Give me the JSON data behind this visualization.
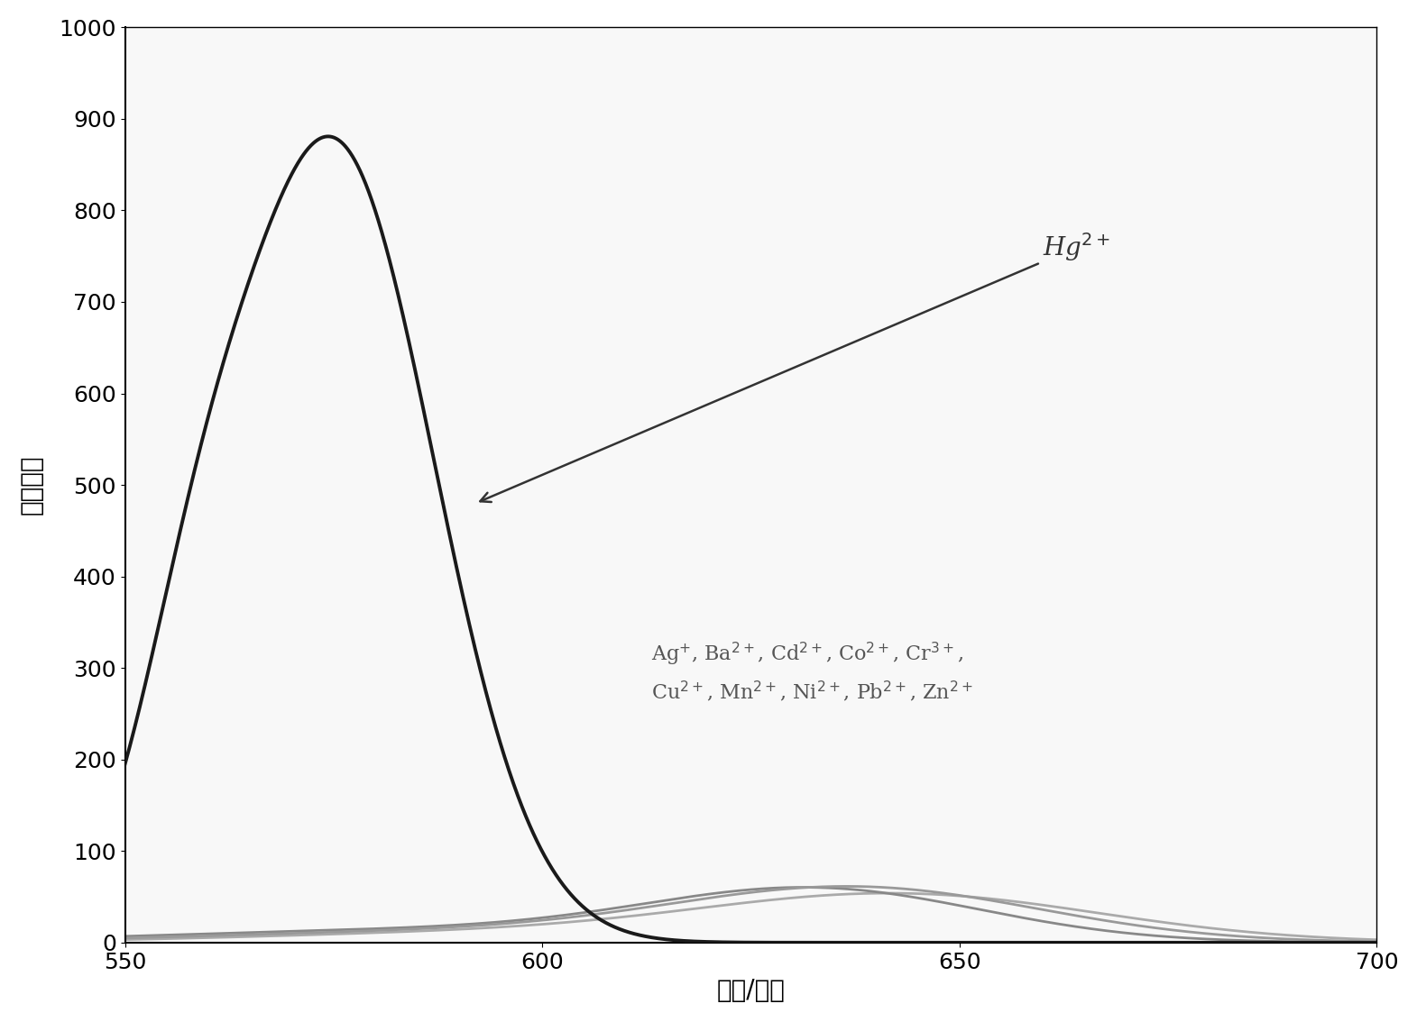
{
  "xlim": [
    550,
    700
  ],
  "ylim": [
    0,
    1000
  ],
  "xticks": [
    550,
    600,
    650,
    700
  ],
  "yticks": [
    0,
    100,
    200,
    300,
    400,
    500,
    600,
    700,
    800,
    900,
    1000
  ],
  "xlabel": "波长/纳米",
  "ylabel": "荧光强度",
  "annotation_hg": "Hg$^{2+}$",
  "annotation_others_line1": "Ag$^{+}$, Ba$^{2+}$, Cd$^{2+}$, Co$^{2+}$, Cr$^{3+}$,",
  "annotation_others_line2": "Cu$^{2+}$, Mn$^{2+}$, Ni$^{2+}$, Pb$^{2+}$, Zn$^{2+}$",
  "line_color_hg": "#1a1a1a",
  "line_color_others": "#888888",
  "line_color_others2": "#aaaaaa",
  "background_color": "#ffffff",
  "font_size_labels": 20,
  "font_size_ticks": 18,
  "font_size_annotation_hg": 20,
  "font_size_annotation_others": 16,
  "figwidth": 15.71,
  "figheight": 11.34,
  "dpi": 100
}
